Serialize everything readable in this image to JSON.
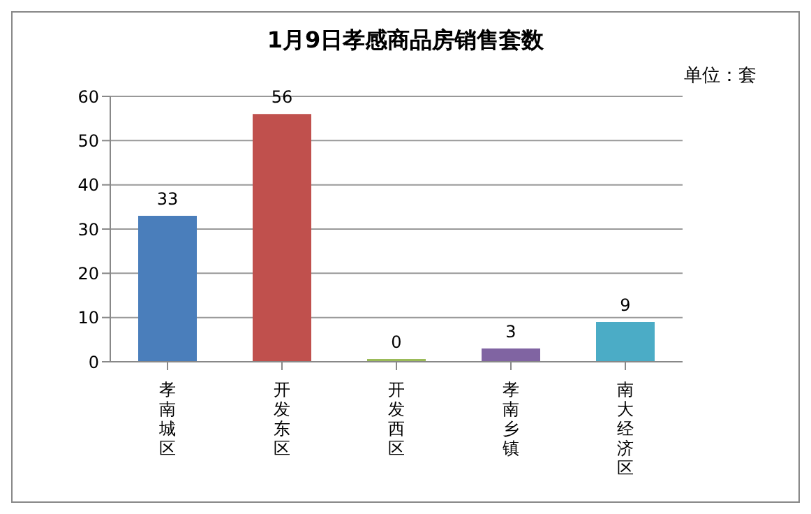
{
  "chart_data": {
    "type": "bar",
    "title": "1月9日孝感商品房销售套数",
    "annotations": [
      "单位：套"
    ],
    "categories": [
      "孝南城区",
      "开发东区",
      "开发西区",
      "孝南乡镇",
      "南大经济区"
    ],
    "values": [
      33,
      56,
      0,
      3,
      9
    ],
    "colors": [
      "#4a7ebb",
      "#c0504d",
      "#9bbb59",
      "#8064a2",
      "#4bacc6"
    ],
    "ylim": [
      0,
      60
    ],
    "yticks": [
      0,
      10,
      20,
      30,
      40,
      50,
      60
    ],
    "grid": "y",
    "data_labels": true
  }
}
